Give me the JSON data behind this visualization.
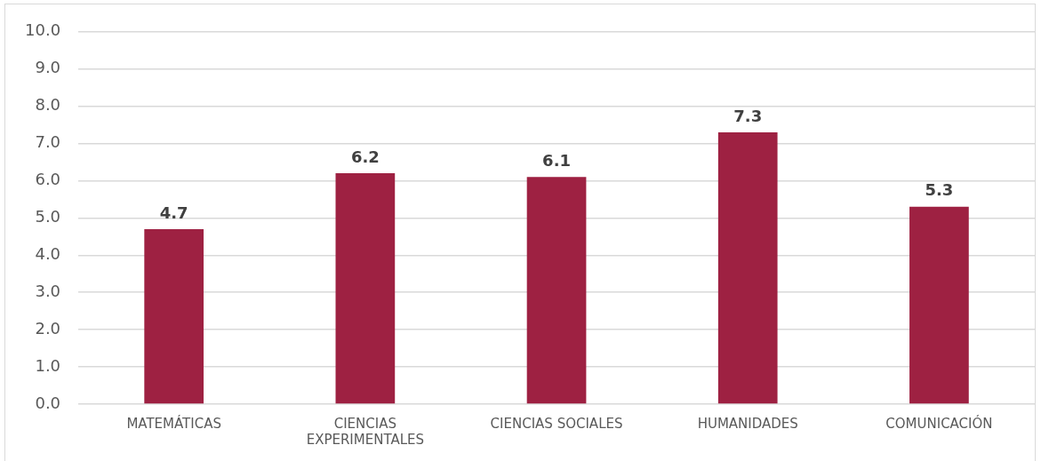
{
  "chart_data": {
    "type": "bar",
    "categories": [
      "MATEMÁTICAS",
      "CIENCIAS EXPERIMENTALES",
      "CIENCIAS SOCIALES",
      "HUMANIDADES",
      "COMUNICACIÓN"
    ],
    "values": [
      4.7,
      6.2,
      6.1,
      7.3,
      5.3
    ],
    "color": "#9e2142",
    "ylim": [
      0,
      10
    ],
    "yticks": [
      {
        "value": 0,
        "label": "0.0"
      },
      {
        "value": 1,
        "label": "1.0"
      },
      {
        "value": 2,
        "label": "2.0"
      },
      {
        "value": 3,
        "label": "3.0"
      },
      {
        "value": 4,
        "label": "4.0"
      },
      {
        "value": 5,
        "label": "5.0"
      },
      {
        "value": 6,
        "label": "6.0"
      },
      {
        "value": 7,
        "label": "7.0"
      },
      {
        "value": 8,
        "label": "8.0"
      },
      {
        "value": 9,
        "label": "9.0"
      },
      {
        "value": 10,
        "label": "10.0"
      }
    ],
    "grid": "y",
    "data_labels": true
  }
}
